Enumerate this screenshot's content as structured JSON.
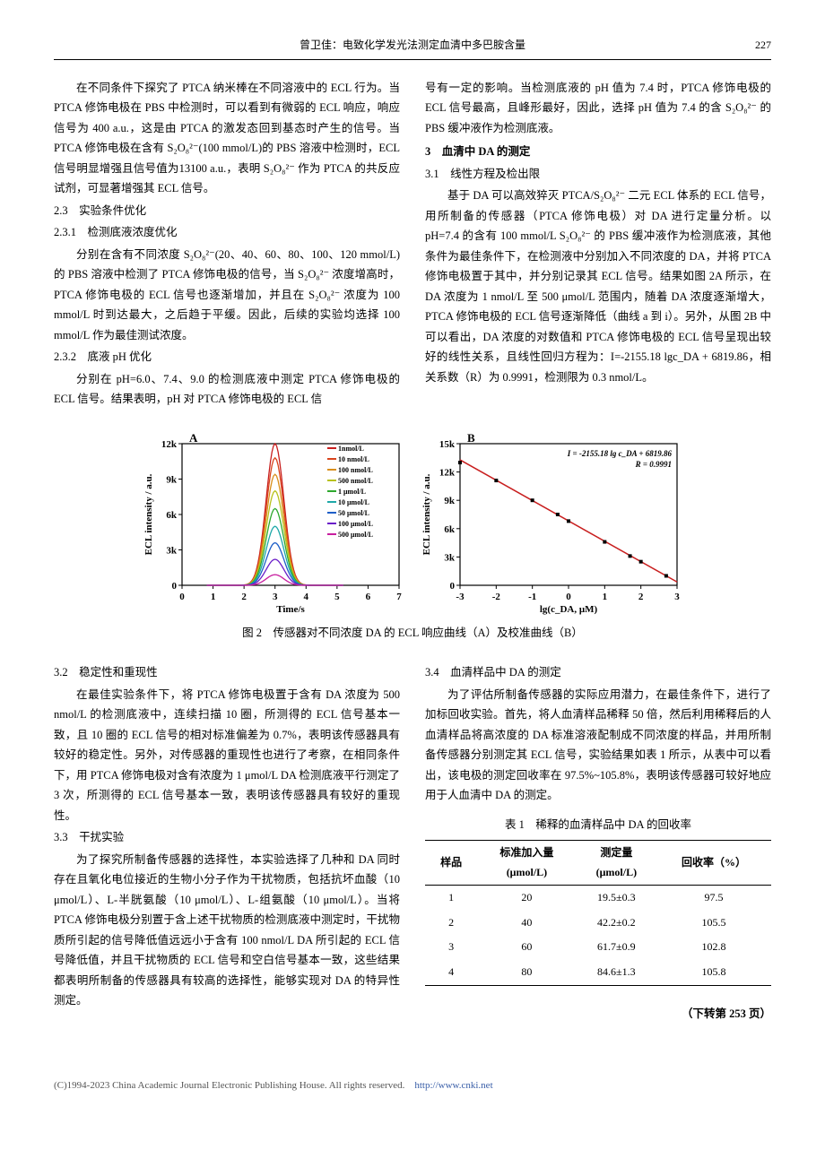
{
  "header": {
    "running_title": "曾卫佳：电致化学发光法测定血清中多巴胺含量",
    "page": "227"
  },
  "text": {
    "p1": "在不同条件下探究了 PTCA 纳米棒在不同溶液中的 ECL 行为。当 PTCA 修饰电极在 PBS 中检测时，可以看到有微弱的 ECL 响应，响应信号为 400 a.u.，这是由 PTCA 的激发态回到基态时产生的信号。当 PTCA 修饰电极在含有 S₂O₈²⁻(100 mmol/L)的 PBS 溶液中检测时，ECL 信号明显增强且信号值为13100 a.u.，表明 S₂O₈²⁻ 作为 PTCA 的共反应试剂，可显著增强其 ECL 信号。",
    "h23": "2.3　实验条件优化",
    "h231": "2.3.1　检测底液浓度优化",
    "p2": "分别在含有不同浓度 S₂O₈²⁻(20、40、60、80、100、120 mmol/L)的 PBS 溶液中检测了 PTCA 修饰电极的信号，当 S₂O₈²⁻ 浓度增高时，PTCA 修饰电极的 ECL 信号也逐渐增加，并且在 S₂O₈²⁻ 浓度为 100 mmol/L 时到达最大，之后趋于平缓。因此，后续的实验均选择 100 mmol/L 作为最佳测试浓度。",
    "h232": "2.3.2　底液 pH 优化",
    "p3": "分别在 pH=6.0、7.4、9.0 的检测底液中测定 PTCA 修饰电极的 ECL 信号。结果表明，pH 对 PTCA 修饰电极的 ECL 信",
    "p3r": "号有一定的影响。当检测底液的 pH 值为 7.4 时，PTCA 修饰电极的 ECL 信号最高，且峰形最好，因此，选择 pH 值为 7.4 的含 S₂O₈²⁻ 的 PBS 缓冲液作为检测底液。",
    "h3": "3　血清中 DA 的测定",
    "h31": "3.1　线性方程及检出限",
    "p4": "基于 DA 可以高效猝灭 PTCA/S₂O₈²⁻ 二元 ECL 体系的 ECL 信号，用所制备的传感器（PTCA 修饰电极）对 DA 进行定量分析。以 pH=7.4 的含有 100 mmol/L S₂O₈²⁻ 的 PBS 缓冲液作为检测底液，其他条件为最佳条件下，在检测液中分别加入不同浓度的 DA，并将 PTCA 修饰电极置于其中，并分别记录其 ECL 信号。结果如图 2A 所示，在 DA 浓度为 1 nmol/L 至 500 μmol/L 范围内，随着 DA 浓度逐渐增大，PTCA 修饰电极的 ECL 信号逐渐降低（曲线 a 到 i）。另外，从图 2B 中可以看出，DA 浓度的对数值和 PTCA 修饰电极的 ECL 信号呈现出较好的线性关系，且线性回归方程为：I=-2155.18 lgc_DA + 6819.86，相关系数（R）为 0.9991，检测限为 0.3 nmol/L。",
    "figcap": "图 2　传感器对不同浓度 DA 的 ECL 响应曲线（A）及校准曲线（B）",
    "h32": "3.2　稳定性和重现性",
    "p5": "在最佳实验条件下，将 PTCA 修饰电极置于含有 DA 浓度为 500 nmol/L 的检测底液中，连续扫描 10 圈，所测得的 ECL 信号基本一致，且 10 圈的 ECL 信号的相对标准偏差为 0.7%，表明该传感器具有较好的稳定性。另外，对传感器的重现性也进行了考察，在相同条件下，用 PTCA 修饰电极对含有浓度为 1 μmol/L DA 检测底液平行测定了 3 次，所测得的 ECL 信号基本一致，表明该传感器具有较好的重现性。",
    "h33": "3.3　干扰实验",
    "p6": "为了探究所制备传感器的选择性，本实验选择了几种和 DA 同时存在且氧化电位接近的生物小分子作为干扰物质，包括抗坏血酸（10 μmol/L）、L-半胱氨酸（10 μmol/L）、L-组氨酸（10 μmol/L）。当将 PTCA 修饰电极分别置于含上述干扰物质的检测底液中测定时，干扰物质所引起的信号降低值远远小于含有 100 nmol/L DA 所引起的 ECL 信号降低值，并且干扰物质的 ECL 信号和空白信号基本一致，这些结果都表明所制备的传感器具有较高的选择性，能够实现对 DA 的特异性测定。",
    "h34": "3.4　血清样品中 DA 的测定",
    "p7": "为了评估所制备传感器的实际应用潜力，在最佳条件下，进行了加标回收实验。首先，将人血清样品稀释 50 倍，然后利用稀释后的人血清样品将高浓度的 DA 标准溶液配制成不同浓度的样品，并用所制备传感器分别测定其 ECL 信号，实验结果如表 1 所示，从表中可以看出，该电极的测定回收率在 97.5%~105.8%，表明该传感器可较好地应用于人血清中 DA 的测定。",
    "table_title": "表 1　稀释的血清样品中 DA 的回收率",
    "cont": "（下转第 253 页）"
  },
  "table": {
    "headers": [
      "样品",
      "标准加入量\n(μmol/L)",
      "测定量\n(μmol/L)",
      "回收率（%）"
    ],
    "rows": [
      [
        "1",
        "20",
        "19.5±0.3",
        "97.5"
      ],
      [
        "2",
        "40",
        "42.2±0.2",
        "105.5"
      ],
      [
        "3",
        "60",
        "61.7±0.9",
        "102.8"
      ],
      [
        "4",
        "80",
        "84.6±1.3",
        "105.8"
      ]
    ]
  },
  "chartA": {
    "type": "line-peaks",
    "panel_label": "A",
    "xlabel": "Time/s",
    "ylabel": "ECL intensity / a.u.",
    "xlim": [
      0,
      7
    ],
    "xtick_step": 1,
    "ylim": [
      0,
      12000
    ],
    "yticks": [
      "0",
      "3k",
      "6k",
      "9k",
      "12k"
    ],
    "legend": [
      "1nmol/L",
      "10 nmol/L",
      "100 nmol/L",
      "500 nmol/L",
      "1 μmol/L",
      "10 μmol/L",
      "50 μmol/L",
      "100 μmol/L",
      "500 μmol/L"
    ],
    "colors": [
      "#c81e1e",
      "#d9441c",
      "#d98f1c",
      "#b8c11c",
      "#2ea82e",
      "#1ea8a8",
      "#1e5fc8",
      "#6a1ec8",
      "#c81e9f"
    ],
    "peak_center": 3.0,
    "peak_width": 0.7,
    "peak_heights": [
      12000,
      10800,
      9400,
      8000,
      6500,
      5000,
      3600,
      2200,
      900
    ],
    "label_fontsize": 11,
    "title_fontsize": 13,
    "background_color": "#ffffff",
    "axis_color": "#000000"
  },
  "chartB": {
    "type": "scatter-line",
    "panel_label": "B",
    "xlabel": "lg(c_DA, μM)",
    "ylabel": "ECL intensity / a.u.",
    "xlim": [
      -3,
      3
    ],
    "xtick_step": 1,
    "ylim": [
      0,
      15000
    ],
    "yticks": [
      "0",
      "3k",
      "6k",
      "9k",
      "12k",
      "15k"
    ],
    "points_x": [
      -3,
      -2,
      -1,
      -0.3,
      0,
      1,
      1.7,
      2,
      2.7
    ],
    "points_y": [
      13000,
      11100,
      9000,
      7500,
      6800,
      4600,
      3100,
      2500,
      1000
    ],
    "marker_color": "#000000",
    "marker_size": 4,
    "line_color": "#c81e1e",
    "line_width": 1.5,
    "eq_text": "I = -2155.18 lg c_DA + 6819.86",
    "r_text": "R = 0.9991",
    "label_fontsize": 11,
    "background_color": "#ffffff",
    "axis_color": "#000000"
  },
  "footer": {
    "text": "(C)1994-2023 China Academic Journal Electronic Publishing House. All rights reserved.",
    "link": "http://www.cnki.net"
  }
}
